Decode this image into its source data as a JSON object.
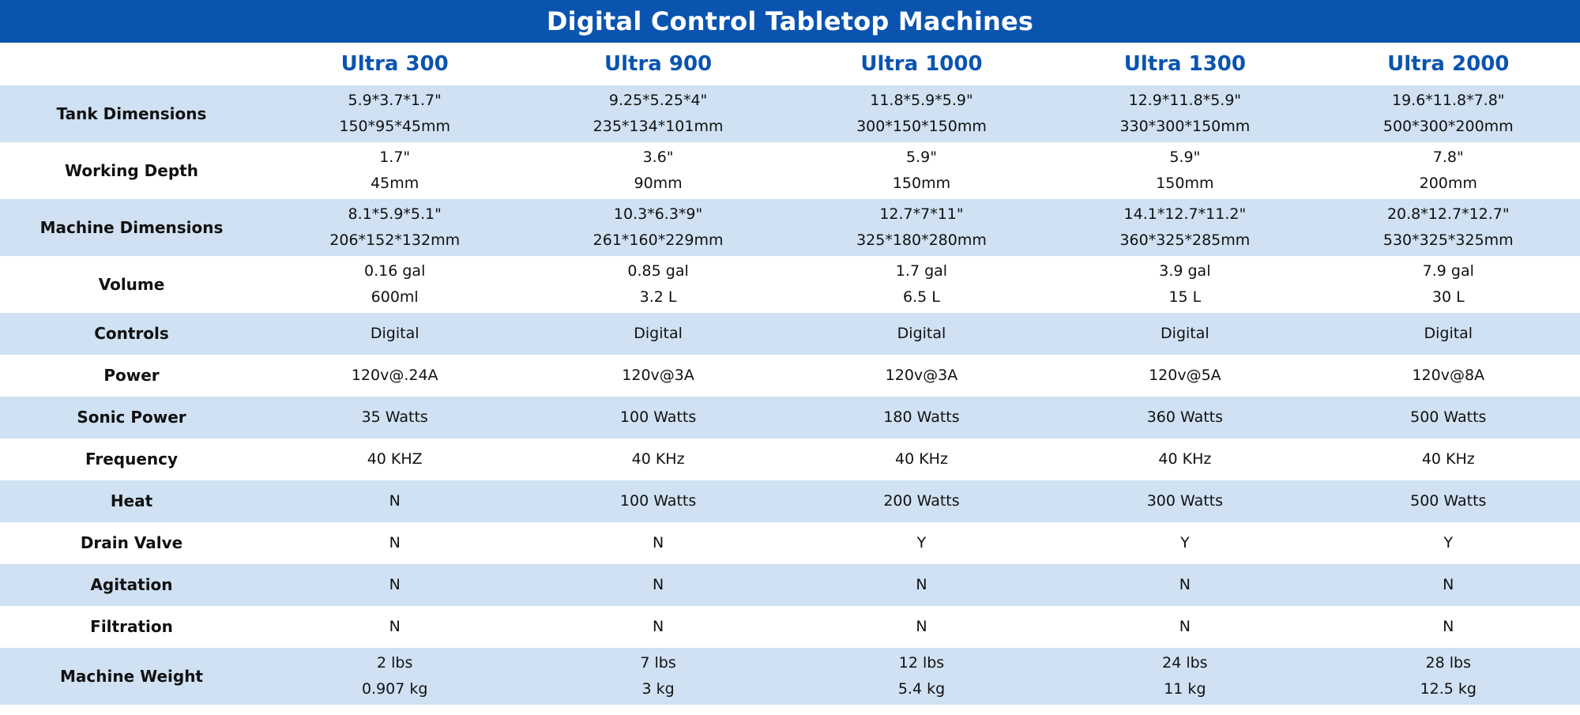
{
  "title": "Digital Control Tabletop Machines",
  "models": [
    "Ultra 300",
    "Ultra 900",
    "Ultra 1000",
    "Ultra 1300",
    "Ultra 2000"
  ],
  "rows": [
    {
      "label": "Tank Dimensions",
      "values": [
        [
          "5.9*3.7*1.7\"",
          "150*95*45mm"
        ],
        [
          "9.25*5.25*4\"",
          "235*134*101mm"
        ],
        [
          "11.8*5.9*5.9\"",
          "300*150*150mm"
        ],
        [
          "12.9*11.8*5.9\"",
          "330*300*150mm"
        ],
        [
          "19.6*11.8*7.8\"",
          "500*300*200mm"
        ]
      ]
    },
    {
      "label": "Working Depth",
      "values": [
        [
          "1.7\"",
          "45mm"
        ],
        [
          "3.6\"",
          "90mm"
        ],
        [
          "5.9\"",
          "150mm"
        ],
        [
          "5.9\"",
          "150mm"
        ],
        [
          "7.8\"",
          "200mm"
        ]
      ]
    },
    {
      "label": "Machine Dimensions",
      "values": [
        [
          "8.1*5.9*5.1\"",
          "206*152*132mm"
        ],
        [
          "10.3*6.3*9\"",
          "261*160*229mm"
        ],
        [
          "12.7*7*11\"",
          "325*180*280mm"
        ],
        [
          "14.1*12.7*11.2\"",
          "360*325*285mm"
        ],
        [
          "20.8*12.7*12.7\"",
          "530*325*325mm"
        ]
      ]
    },
    {
      "label": "Volume",
      "values": [
        [
          "0.16 gal",
          "600ml"
        ],
        [
          "0.85 gal",
          "3.2 L"
        ],
        [
          "1.7 gal",
          "6.5 L"
        ],
        [
          "3.9 gal",
          "15 L"
        ],
        [
          "7.9 gal",
          "30 L"
        ]
      ]
    },
    {
      "label": "Controls",
      "values": [
        [
          "Digital"
        ],
        [
          "Digital"
        ],
        [
          "Digital"
        ],
        [
          "Digital"
        ],
        [
          "Digital"
        ]
      ]
    },
    {
      "label": "Power",
      "values": [
        [
          "120v@.24A"
        ],
        [
          "120v@3A"
        ],
        [
          "120v@3A"
        ],
        [
          "120v@5A"
        ],
        [
          "120v@8A"
        ]
      ]
    },
    {
      "label": "Sonic Power",
      "values": [
        [
          "35 Watts"
        ],
        [
          "100 Watts"
        ],
        [
          "180 Watts"
        ],
        [
          "360 Watts"
        ],
        [
          "500 Watts"
        ]
      ]
    },
    {
      "label": "Frequency",
      "values": [
        [
          "40 KHZ"
        ],
        [
          "40 KHz"
        ],
        [
          "40 KHz"
        ],
        [
          "40 KHz"
        ],
        [
          "40 KHz"
        ]
      ]
    },
    {
      "label": "Heat",
      "values": [
        [
          "N"
        ],
        [
          "100 Watts"
        ],
        [
          "200 Watts"
        ],
        [
          "300 Watts"
        ],
        [
          "500 Watts"
        ]
      ]
    },
    {
      "label": "Drain Valve",
      "values": [
        [
          "N"
        ],
        [
          "N"
        ],
        [
          "Y"
        ],
        [
          "Y"
        ],
        [
          "Y"
        ]
      ]
    },
    {
      "label": "Agitation",
      "values": [
        [
          "N"
        ],
        [
          "N"
        ],
        [
          "N"
        ],
        [
          "N"
        ],
        [
          "N"
        ]
      ]
    },
    {
      "label": "Filtration",
      "values": [
        [
          "N"
        ],
        [
          "N"
        ],
        [
          "N"
        ],
        [
          "N"
        ],
        [
          "N"
        ]
      ]
    },
    {
      "label": "Machine Weight",
      "values": [
        [
          "2 lbs",
          "0.907 kg"
        ],
        [
          "7 lbs",
          "3 kg"
        ],
        [
          "12 lbs",
          "5.4 kg"
        ],
        [
          "24 lbs",
          "11 kg"
        ],
        [
          "28 lbs",
          "12.5 kg"
        ]
      ]
    }
  ],
  "colors": {
    "title_bg": "#0a54b0",
    "model_text": "#0a54b0",
    "shade_row": "#cfe1f2"
  }
}
